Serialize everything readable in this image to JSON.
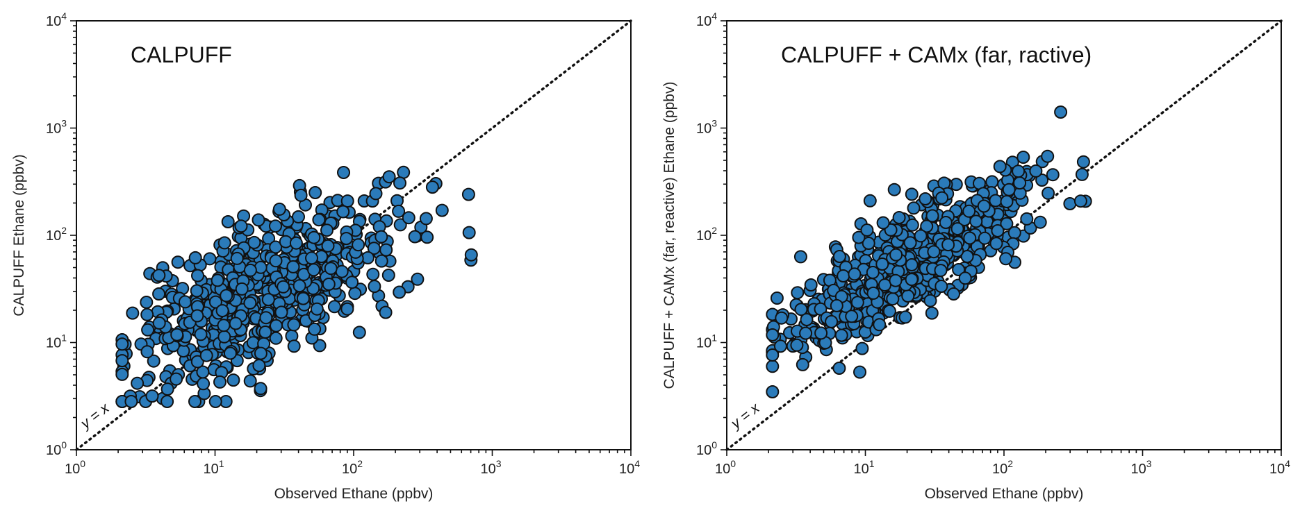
{
  "chart_data": [
    {
      "type": "scatter",
      "title": "CALPUFF",
      "xlabel": "Observed Ethane (ppbv)",
      "ylabel": "CALPUFF Ethane (ppbv)",
      "xscale": "log",
      "yscale": "log",
      "xlim": [
        1,
        10000
      ],
      "ylim": [
        1,
        10000
      ],
      "tick_base": "10",
      "tick_exponents": [
        "0",
        "1",
        "2",
        "3",
        "4"
      ],
      "reference_line_label": "y = x",
      "marker_color": "#2b7bba",
      "marker_edge": "#111111",
      "seed": 7,
      "n_points": 640,
      "slope": 0.55,
      "intercept": 0.72,
      "scatter_sd": 0.34
    },
    {
      "type": "scatter",
      "title": "CALPUFF + CAMx (far, ractive)",
      "xlabel": "Observed Ethane (ppbv)",
      "ylabel": "CALPUFF + CAMx (far, reactive) Ethane (ppbv)",
      "xscale": "log",
      "yscale": "log",
      "xlim": [
        1,
        10000
      ],
      "ylim": [
        1,
        10000
      ],
      "tick_base": "10",
      "tick_exponents": [
        "0",
        "1",
        "2",
        "3",
        "4"
      ],
      "reference_line_label": "y = x",
      "marker_color": "#2b7bba",
      "marker_edge": "#111111",
      "seed": 13,
      "n_points": 640,
      "slope": 0.73,
      "intercept": 0.78,
      "scatter_sd": 0.23
    }
  ]
}
